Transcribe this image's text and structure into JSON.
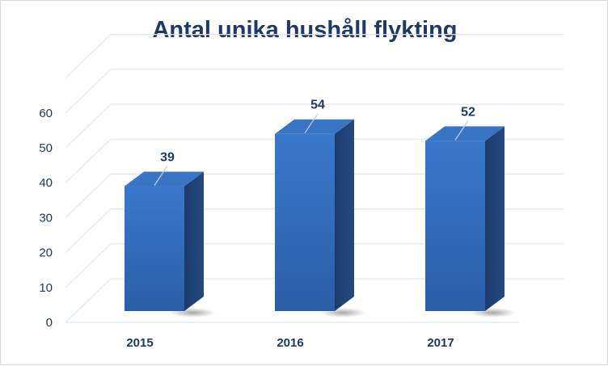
{
  "chart_data": {
    "type": "bar",
    "title": "Antal unika hushåll flykting",
    "categories": [
      "2015",
      "2016",
      "2017"
    ],
    "values": [
      39,
      54,
      52
    ],
    "data_labels": [
      "39",
      "54",
      "52"
    ],
    "y_ticks": [
      "0",
      "10",
      "20",
      "30",
      "40",
      "50",
      "60"
    ],
    "ylim": [
      0,
      70
    ],
    "grid": true,
    "legend": "none",
    "style": "3d-column"
  },
  "colors": {
    "title": "#1f3864",
    "bar_front": "#2f68b8",
    "bar_side": "#1d3f73",
    "bar_top": "#3a74c4",
    "grid": "#dce6f2"
  }
}
